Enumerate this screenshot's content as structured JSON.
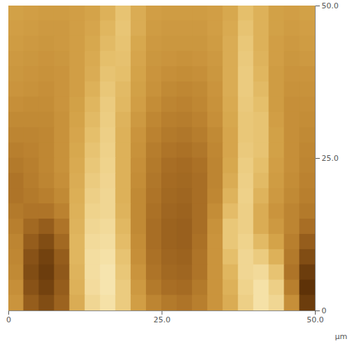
{
  "chart_data": {
    "type": "heatmap",
    "x": [
      1.25,
      3.75,
      6.25,
      8.75,
      11.25,
      13.75,
      16.25,
      18.75,
      21.25,
      23.75,
      26.25,
      28.75,
      31.25,
      33.75,
      36.25,
      38.75,
      41.25,
      43.75,
      46.25,
      48.75
    ],
    "y": [
      48.75,
      46.25,
      43.75,
      41.25,
      38.75,
      36.25,
      33.75,
      31.25,
      28.75,
      26.25,
      23.75,
      21.25,
      18.75,
      16.25,
      13.75,
      11.25,
      8.75,
      6.25,
      3.75,
      1.25
    ],
    "z": [
      [
        55,
        54,
        53,
        53,
        54,
        56,
        62,
        70,
        60,
        54,
        53,
        53,
        53,
        54,
        58,
        68,
        62,
        55,
        54,
        55
      ],
      [
        54,
        53,
        52,
        52,
        54,
        57,
        64,
        71,
        60,
        53,
        52,
        52,
        52,
        54,
        59,
        70,
        62,
        55,
        53,
        54
      ],
      [
        53,
        52,
        51,
        52,
        54,
        58,
        66,
        70,
        58,
        52,
        51,
        51,
        51,
        53,
        60,
        72,
        62,
        54,
        52,
        53
      ],
      [
        52,
        51,
        50,
        51,
        54,
        59,
        68,
        69,
        57,
        51,
        50,
        49,
        50,
        52,
        60,
        73,
        63,
        54,
        51,
        52
      ],
      [
        51,
        50,
        49,
        50,
        54,
        60,
        70,
        68,
        56,
        50,
        48,
        47,
        48,
        51,
        60,
        74,
        64,
        53,
        50,
        50
      ],
      [
        50,
        49,
        48,
        50,
        54,
        62,
        72,
        66,
        55,
        49,
        46,
        45,
        46,
        50,
        60,
        74,
        66,
        53,
        49,
        49
      ],
      [
        48,
        47,
        47,
        50,
        55,
        64,
        74,
        65,
        54,
        47,
        44,
        43,
        45,
        49,
        59,
        73,
        68,
        53,
        48,
        48
      ],
      [
        46,
        46,
        46,
        49,
        56,
        66,
        75,
        63,
        52,
        45,
        42,
        41,
        43,
        48,
        58,
        72,
        70,
        54,
        48,
        47
      ],
      [
        44,
        44,
        45,
        49,
        57,
        68,
        76,
        62,
        50,
        43,
        40,
        39,
        41,
        46,
        57,
        72,
        70,
        55,
        48,
        46
      ],
      [
        42,
        43,
        45,
        49,
        58,
        70,
        77,
        62,
        49,
        41,
        38,
        37,
        39,
        45,
        57,
        73,
        70,
        55,
        48,
        45
      ],
      [
        40,
        42,
        45,
        49,
        59,
        72,
        78,
        62,
        48,
        40,
        36,
        35,
        37,
        44,
        58,
        75,
        68,
        54,
        48,
        44
      ],
      [
        38,
        41,
        44,
        48,
        60,
        74,
        79,
        62,
        47,
        39,
        35,
        34,
        36,
        44,
        60,
        76,
        66,
        53,
        47,
        43
      ],
      [
        38,
        40,
        42,
        46,
        61,
        76,
        80,
        62,
        46,
        38,
        34,
        33,
        36,
        45,
        63,
        77,
        63,
        52,
        46,
        42
      ],
      [
        40,
        38,
        38,
        43,
        62,
        78,
        80,
        63,
        46,
        37,
        33,
        32,
        36,
        47,
        67,
        76,
        60,
        50,
        44,
        40
      ],
      [
        42,
        34,
        30,
        38,
        63,
        80,
        82,
        65,
        46,
        36,
        32,
        31,
        36,
        49,
        72,
        76,
        60,
        52,
        44,
        36
      ],
      [
        44,
        30,
        24,
        34,
        64,
        82,
        84,
        67,
        47,
        36,
        32,
        31,
        37,
        50,
        72,
        78,
        66,
        56,
        42,
        30
      ],
      [
        45,
        26,
        20,
        30,
        64,
        84,
        86,
        70,
        48,
        37,
        33,
        32,
        38,
        50,
        68,
        80,
        74,
        62,
        40,
        24
      ],
      [
        46,
        24,
        18,
        28,
        63,
        84,
        88,
        72,
        50,
        38,
        34,
        33,
        38,
        50,
        64,
        80,
        82,
        70,
        38,
        18
      ],
      [
        48,
        26,
        20,
        30,
        62,
        83,
        88,
        74,
        52,
        40,
        36,
        35,
        40,
        50,
        62,
        78,
        86,
        76,
        42,
        14
      ],
      [
        50,
        30,
        24,
        32,
        60,
        80,
        86,
        74,
        54,
        44,
        40,
        38,
        42,
        50,
        60,
        76,
        86,
        80,
        48,
        18
      ]
    ],
    "xlim": [
      0,
      50
    ],
    "ylim": [
      0,
      50
    ],
    "xticks": [
      0,
      {
        "value": 25,
        "label": "25.0"
      },
      {
        "value": 50,
        "label": "50.0"
      }
    ],
    "yticks": [
      0,
      {
        "value": 25,
        "label": "25.0"
      },
      {
        "value": 50,
        "label": "50.0"
      }
    ],
    "xlabel": "µm"
  }
}
